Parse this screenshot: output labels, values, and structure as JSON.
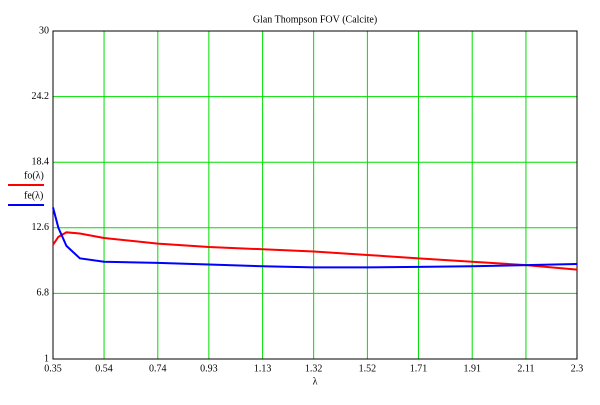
{
  "chart_data": {
    "type": "line",
    "title": "Glan Thompson FOV (Calcite)",
    "x_label": "λ",
    "x": [
      0.35,
      0.37,
      0.4,
      0.45,
      0.54,
      0.74,
      0.93,
      1.13,
      1.32,
      1.52,
      1.71,
      1.91,
      2.11,
      2.3
    ],
    "series": [
      {
        "name": "fo(λ)",
        "color": "#ff0000",
        "values": [
          11.1,
          11.8,
          12.2,
          12.1,
          11.7,
          11.2,
          10.9,
          10.7,
          10.5,
          10.2,
          9.9,
          9.6,
          9.3,
          8.9
        ]
      },
      {
        "name": "fe(λ)",
        "color": "#0000ff",
        "values": [
          14.4,
          12.6,
          11.0,
          9.9,
          9.6,
          9.5,
          9.35,
          9.2,
          9.1,
          9.1,
          9.15,
          9.2,
          9.3,
          9.4
        ]
      }
    ],
    "xlim": [
      0.35,
      2.3
    ],
    "xticks": [
      0.35,
      0.54,
      0.74,
      0.93,
      1.13,
      1.32,
      1.52,
      1.71,
      1.91,
      2.11,
      2.3
    ],
    "ylim": [
      1,
      30
    ],
    "yticks": [
      1,
      6.8,
      12.6,
      18.4,
      24.2,
      30
    ],
    "grid": true,
    "grid_color": "#00dd00"
  }
}
